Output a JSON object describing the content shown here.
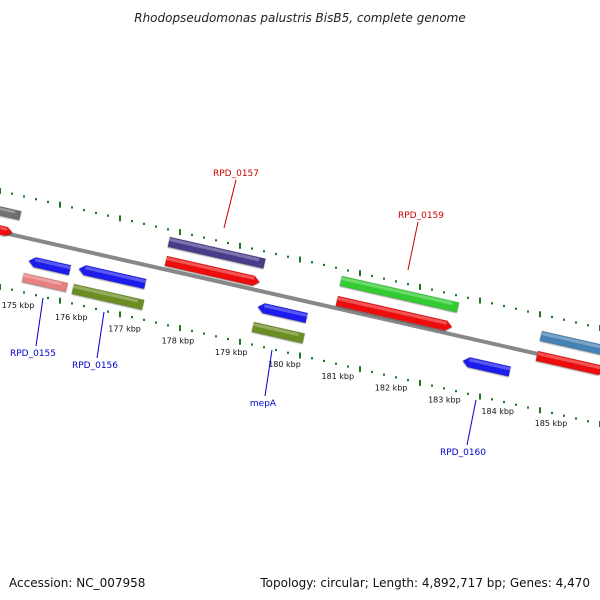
{
  "title": "Rhodopseudomonas palustris BisB5, complete genome",
  "footer": {
    "accession": "Accession: NC_007958",
    "summary": "Topology: circular; Length: 4,892,717 bp; Genes: 4,470"
  },
  "colors": {
    "backbone": "#8a8a8a",
    "tick": "#1f7a1f",
    "label_forward": "#cc0000",
    "label_reverse": "#0000cc"
  },
  "kbp_labels": [
    "175 kbp",
    "176 kbp",
    "177 kbp",
    "178 kbp",
    "179 kbp",
    "180 kbp",
    "181 kbp",
    "182 kbp",
    "183 kbp",
    "184 kbp",
    "185 kbp"
  ],
  "gene_labels": {
    "forward": [
      "RPD_0157",
      "RPD_0159"
    ],
    "reverse": [
      "RPD_0155",
      "RPD_0156",
      "mepA",
      "RPD_0160"
    ]
  },
  "feature_colors": {
    "blue": "#1a1aee",
    "red": "#ee1111",
    "green": "#33cc33",
    "olive": "#6b8e23",
    "purple": "#483d8b",
    "pink": "#e88080",
    "steel": "#4682b4",
    "gray": "#707070"
  }
}
